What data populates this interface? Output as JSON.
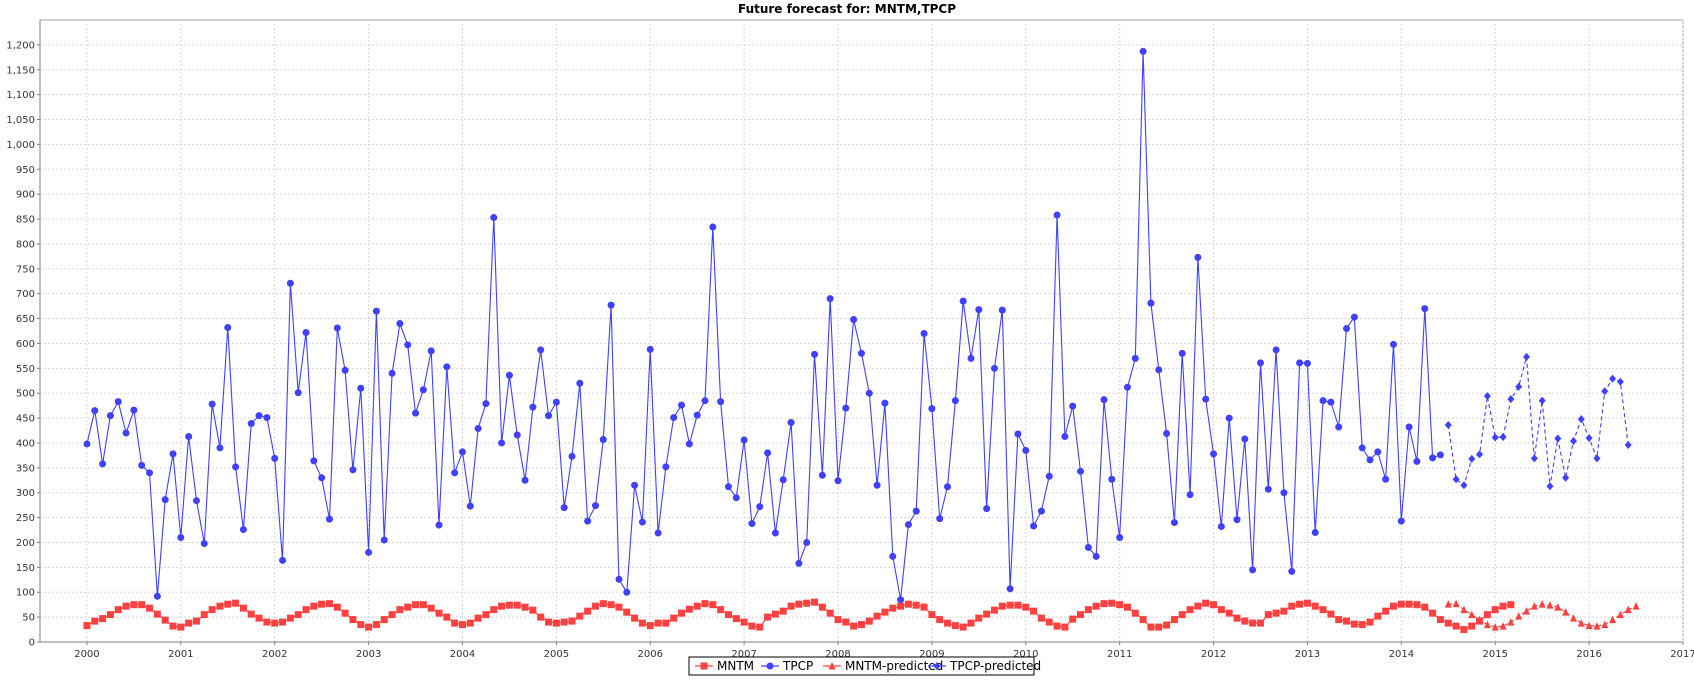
{
  "chart_data": {
    "type": "line",
    "title": "Future forecast for: MNTM,TPCP",
    "xlabel": "",
    "ylabel": "",
    "xlim": [
      1999.5,
      2017.0
    ],
    "ylim": [
      0,
      1250
    ],
    "grid": true,
    "legend_position": "bottom-center",
    "x_ticks": [
      2000,
      2001,
      2002,
      2003,
      2004,
      2005,
      2006,
      2007,
      2008,
      2009,
      2010,
      2011,
      2012,
      2013,
      2014,
      2015,
      2016,
      2017
    ],
    "y_ticks": [
      0,
      50,
      100,
      150,
      200,
      250,
      300,
      350,
      400,
      450,
      500,
      550,
      600,
      650,
      700,
      750,
      800,
      850,
      900,
      950,
      1000,
      1050,
      1100,
      1150,
      1200
    ],
    "y_tick_labels": [
      "0",
      "50",
      "100",
      "150",
      "200",
      "250",
      "300",
      "350",
      "400",
      "450",
      "500",
      "550",
      "600",
      "650",
      "700",
      "750",
      "800",
      "850",
      "900",
      "950",
      "1,000",
      "1,050",
      "1,100",
      "1,150",
      "1,200"
    ],
    "series": [
      {
        "name": "MNTM",
        "color": "#ff4040",
        "marker": "square",
        "dashed": false,
        "start": 2000.0,
        "step": 0.08333,
        "values": [
          33,
          42,
          47,
          55,
          65,
          72,
          75,
          75,
          68,
          56,
          44,
          32,
          30,
          38,
          42,
          55,
          65,
          72,
          76,
          78,
          68,
          56,
          48,
          40,
          38,
          40,
          48,
          55,
          65,
          72,
          76,
          77,
          70,
          58,
          45,
          35,
          30,
          35,
          45,
          55,
          65,
          70,
          75,
          75,
          68,
          58,
          50,
          38,
          35,
          38,
          48,
          55,
          65,
          72,
          74,
          74,
          70,
          64,
          50,
          40,
          38,
          40,
          42,
          52,
          62,
          72,
          77,
          75,
          70,
          60,
          48,
          38,
          33,
          38,
          38,
          48,
          58,
          66,
          72,
          77,
          75,
          65,
          55,
          47,
          40,
          32,
          30,
          50,
          56,
          62,
          72,
          76,
          78,
          80,
          70,
          58,
          45,
          40,
          32,
          35,
          42,
          52,
          60,
          68,
          72,
          76,
          74,
          70,
          55,
          45,
          38,
          33,
          30,
          38,
          48,
          56,
          64,
          72,
          74,
          74,
          70,
          62,
          48,
          40,
          32,
          30,
          46,
          55,
          65,
          72,
          77,
          78,
          75,
          70,
          58,
          45,
          30,
          30,
          34,
          45,
          55,
          65,
          72,
          78,
          75,
          65,
          58,
          48,
          42,
          38,
          38,
          55,
          58,
          62,
          72,
          76,
          78,
          72,
          65,
          56,
          45,
          42,
          36,
          35,
          40,
          52,
          62,
          72,
          76,
          76,
          75,
          70,
          58,
          45,
          38,
          32,
          25,
          32,
          42,
          55,
          65,
          72,
          75
        ]
      },
      {
        "name": "TPCP",
        "color": "#4040ff",
        "marker": "circle",
        "dashed": false,
        "start": 2000.0,
        "step": 0.08333,
        "values": [
          398,
          465,
          358,
          455,
          483,
          420,
          466,
          355,
          340,
          92,
          286,
          378,
          210,
          413,
          284,
          198,
          478,
          390,
          632,
          352,
          226,
          439,
          455,
          451,
          369,
          164,
          721,
          501,
          622,
          364,
          330,
          247,
          631,
          546,
          346,
          510,
          180,
          665,
          205,
          540,
          640,
          597,
          460,
          507,
          585,
          235,
          553,
          340,
          382,
          273,
          429,
          479,
          853,
          400,
          536,
          416,
          325,
          472,
          587,
          455,
          482,
          270,
          373,
          520,
          243,
          274,
          407,
          677,
          126,
          100,
          315,
          241,
          588,
          219,
          352,
          451,
          476,
          398,
          456,
          485,
          834,
          483,
          312,
          290,
          406,
          238,
          272,
          380,
          219,
          326,
          441,
          158,
          200,
          578,
          335,
          690,
          324,
          470,
          648,
          580,
          500,
          315,
          480,
          172,
          85,
          236,
          263,
          620,
          469,
          248,
          312,
          485,
          685,
          570,
          668,
          268,
          550,
          667,
          107,
          418,
          385,
          233,
          263,
          333,
          858,
          413,
          474,
          343,
          190,
          172,
          487,
          327,
          210,
          512,
          570,
          1187,
          681,
          547,
          419,
          240,
          580,
          296,
          773,
          488,
          378,
          232,
          450,
          246,
          408,
          145,
          561,
          307,
          587,
          300,
          142,
          561,
          560,
          220,
          485,
          482,
          432,
          630,
          653,
          390,
          366,
          382,
          327,
          598,
          243,
          432,
          363,
          670,
          370,
          376
        ]
      },
      {
        "name": "MNTM-predicted",
        "color": "#ff4040",
        "marker": "triangle",
        "dashed": true,
        "start": 2014.5,
        "step": 0.08333,
        "values": [
          76,
          77,
          65,
          55,
          45,
          35,
          30,
          32,
          40,
          52,
          62,
          72,
          76,
          74,
          70,
          60,
          48,
          38,
          33,
          32,
          35,
          45,
          55,
          65,
          72
        ]
      },
      {
        "name": "TPCP-predicted",
        "color": "#4040ff",
        "marker": "diamond",
        "dashed": true,
        "start": 2014.5,
        "step": 0.08333,
        "values": [
          436,
          327,
          315,
          368,
          377,
          494,
          411,
          412,
          488,
          513,
          573,
          369,
          485,
          313,
          409,
          330,
          404,
          448,
          410,
          369,
          504,
          529,
          523,
          396
        ]
      }
    ]
  }
}
